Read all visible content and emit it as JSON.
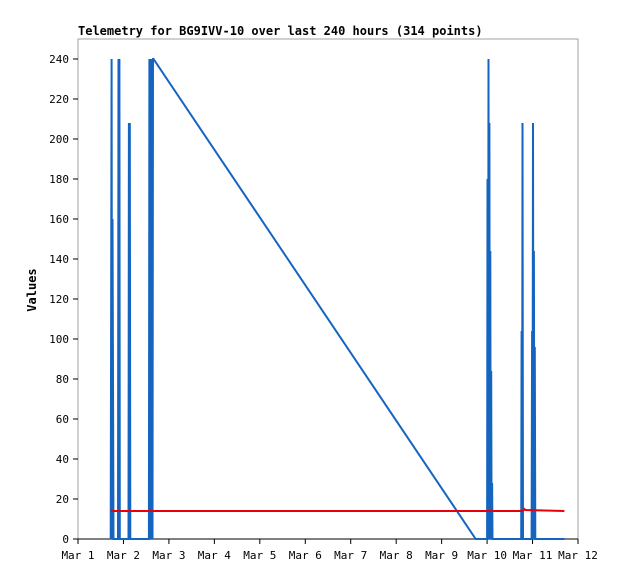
{
  "chart_data": {
    "type": "line",
    "title": "Telemetry for BG9IVV-10 over last 240 hours (314 points)",
    "xlabel": "",
    "ylabel": "Values",
    "x_unit": "days (March)",
    "xlim": [
      1,
      12
    ],
    "ylim": [
      0,
      250
    ],
    "x_ticks": [
      1,
      2,
      3,
      4,
      5,
      6,
      7,
      8,
      9,
      10,
      11,
      12
    ],
    "x_tick_labels": [
      "Mar 1",
      "Mar 2",
      "Mar 3",
      "Mar 4",
      "Mar 5",
      "Mar 6",
      "Mar 7",
      "Mar 8",
      "Mar 9",
      "Mar 10",
      "Mar 11",
      "Mar 12"
    ],
    "y_ticks": [
      0,
      20,
      40,
      60,
      80,
      100,
      120,
      140,
      160,
      180,
      200,
      220,
      240
    ],
    "y_tick_labels": [
      "0",
      "20",
      "40",
      "60",
      "80",
      "100",
      "120",
      "140",
      "160",
      "180",
      "200",
      "220",
      "240"
    ],
    "grid": false,
    "legend": "none",
    "series": [
      {
        "color": "#1565c0",
        "x": [
          1.72,
          1.74,
          1.75,
          1.76,
          1.78,
          1.88,
          1.89,
          1.9,
          1.91,
          1.92,
          2.11,
          2.12,
          2.13,
          2.14,
          2.15,
          2.56,
          2.57,
          2.58,
          2.59,
          2.6,
          2.61,
          2.62,
          2.63,
          2.64,
          2.65,
          2.66,
          9.75,
          10.0,
          10.01,
          10.02,
          10.03,
          10.04,
          10.05,
          10.06,
          10.07,
          10.08,
          10.09,
          10.1,
          10.11,
          10.12,
          10.75,
          10.76,
          10.77,
          10.78,
          10.79,
          10.8,
          10.98,
          10.99,
          11.0,
          11.01,
          11.02,
          11.03,
          11.04,
          11.05,
          11.06,
          11.07,
          11.08,
          11.15,
          11.7
        ],
        "y": [
          0,
          240,
          0,
          160,
          0,
          0,
          240,
          0,
          240,
          0,
          0,
          208,
          0,
          208,
          0,
          0,
          240,
          0,
          104,
          0,
          240,
          0,
          240,
          0,
          240,
          240,
          0,
          0,
          180,
          0,
          240,
          0,
          208,
          0,
          144,
          0,
          84,
          0,
          28,
          0,
          0,
          104,
          0,
          208,
          0,
          0,
          0,
          104,
          0,
          208,
          0,
          144,
          0,
          96,
          0,
          0,
          0,
          0,
          0
        ]
      },
      {
        "color": "#e8000b",
        "x": [
          1.72,
          10.78,
          10.8,
          10.82,
          10.84,
          11.7
        ],
        "y": [
          14,
          14,
          14.5,
          15,
          14.5,
          14
        ]
      }
    ]
  }
}
